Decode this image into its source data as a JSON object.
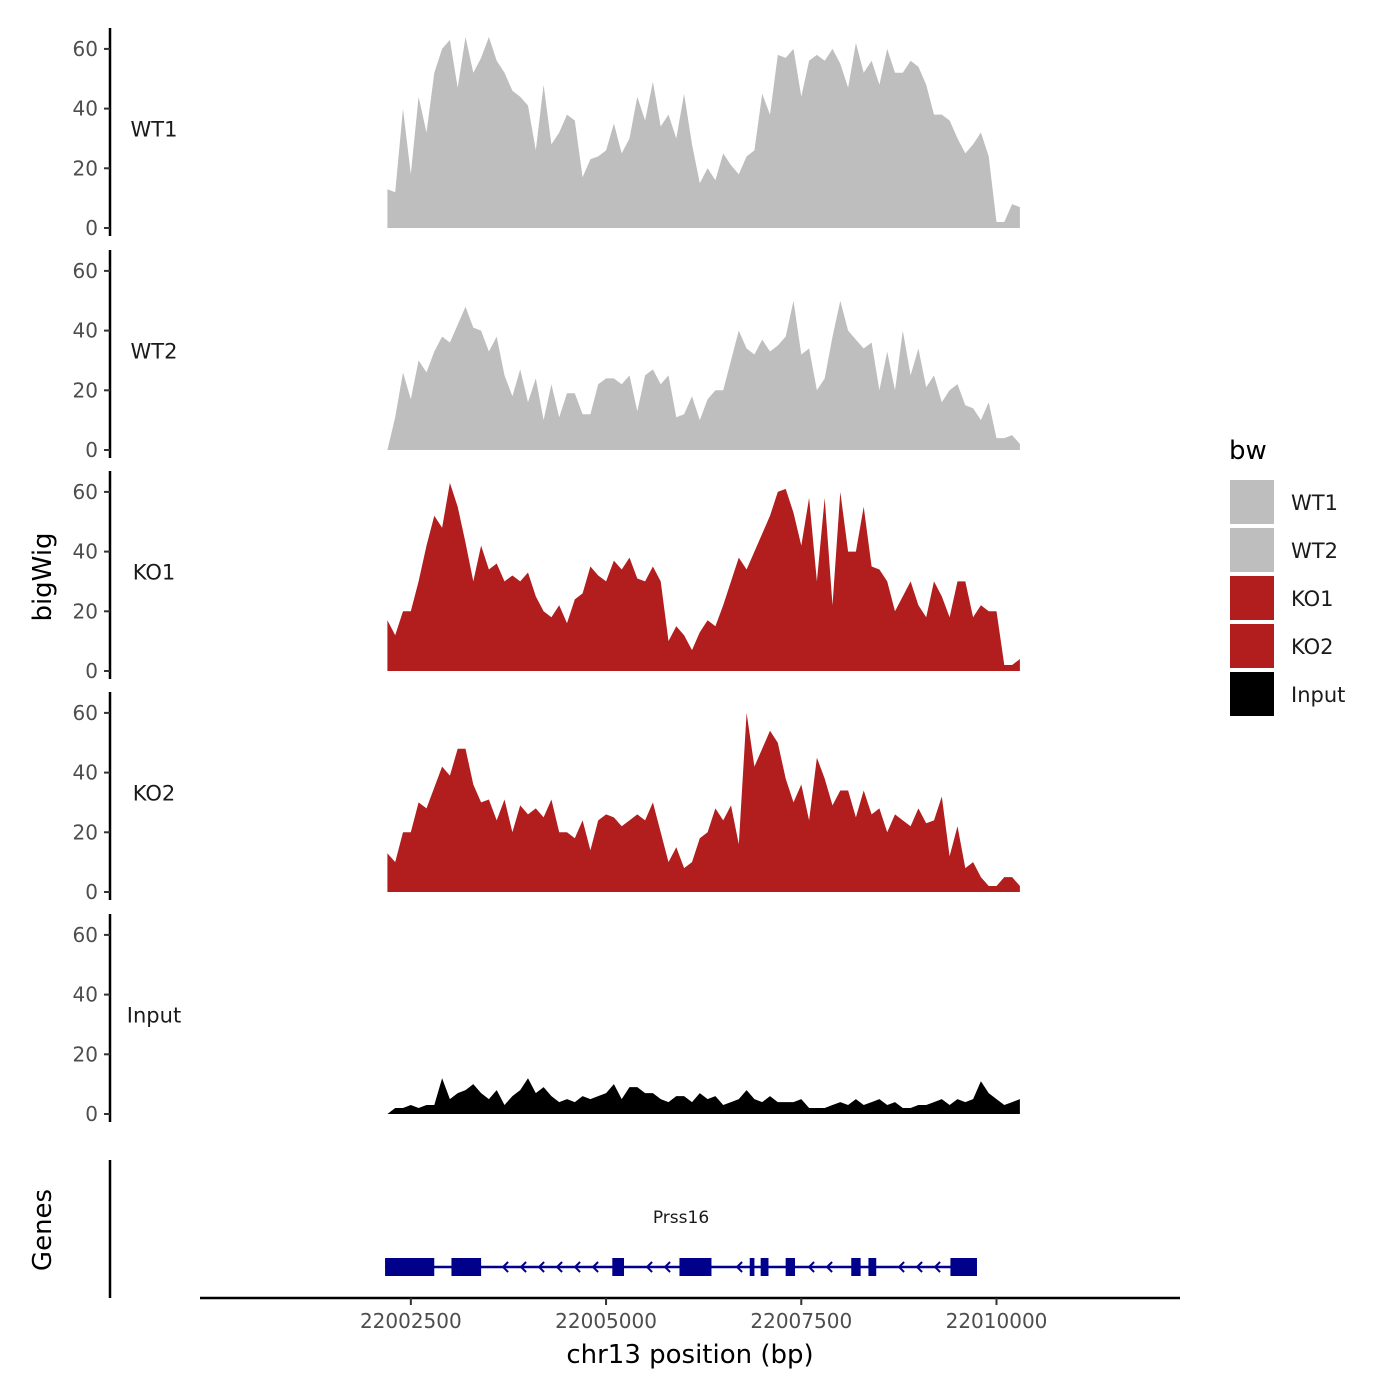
{
  "chart_data": {
    "type": "area",
    "chromosome": "chr13",
    "xlabel": "chr13 position (bp)",
    "ylabel": "bigWig",
    "xlim": [
      21999800,
      22012350
    ],
    "x_ticks": [
      22002500,
      22005000,
      22007500,
      22010000
    ],
    "x_tick_labels": [
      "22002500",
      "22005000",
      "22007500",
      "22010000"
    ],
    "ylim": [
      0,
      67
    ],
    "y_ticks": [
      0,
      20,
      40,
      60
    ],
    "y_tick_labels": [
      "0",
      "20",
      "40",
      "60"
    ],
    "x_start": 22002200,
    "x_step": 100,
    "series": [
      {
        "name": "WT1",
        "color": "#bebebe",
        "values": [
          13,
          12,
          40,
          18,
          44,
          32,
          52,
          60,
          63,
          47,
          64,
          52,
          57,
          64,
          56,
          52,
          46,
          44,
          41,
          26,
          48,
          28,
          32,
          38,
          36,
          17,
          23,
          24,
          26,
          35,
          25,
          30,
          44,
          36,
          49,
          34,
          38,
          30,
          45,
          28,
          15,
          20,
          16,
          25,
          21,
          18,
          24,
          26,
          45,
          38,
          58,
          57,
          60,
          44,
          56,
          58,
          56,
          60,
          55,
          47,
          62,
          52,
          56,
          48,
          60,
          52,
          52,
          56,
          54,
          48,
          38,
          38,
          36,
          30,
          25,
          28,
          32,
          24,
          2,
          2,
          8,
          7
        ]
      },
      {
        "name": "WT2",
        "color": "#bebebe",
        "values": [
          0,
          11,
          26,
          17,
          30,
          26,
          33,
          38,
          36,
          42,
          48,
          41,
          40,
          33,
          38,
          25,
          18,
          27,
          16,
          24,
          10,
          22,
          11,
          19,
          19,
          12,
          12,
          22,
          24,
          24,
          22,
          25,
          13,
          25,
          27,
          22,
          25,
          11,
          12,
          18,
          10,
          17,
          20,
          20,
          30,
          40,
          34,
          32,
          37,
          33,
          35,
          38,
          50,
          32,
          34,
          20,
          24,
          38,
          50,
          40,
          37,
          34,
          36,
          20,
          33,
          20,
          40,
          25,
          34,
          21,
          25,
          16,
          20,
          22,
          15,
          14,
          10,
          16,
          4,
          4,
          5,
          2
        ]
      },
      {
        "name": "KO1",
        "color": "#b21d1e",
        "values": [
          17,
          12,
          20,
          20,
          30,
          42,
          52,
          48,
          63,
          55,
          43,
          30,
          42,
          34,
          36,
          30,
          32,
          30,
          33,
          25,
          20,
          18,
          22,
          16,
          24,
          26,
          35,
          32,
          30,
          37,
          34,
          38,
          31,
          30,
          35,
          30,
          10,
          15,
          12,
          7,
          13,
          17,
          15,
          22,
          30,
          38,
          34,
          40,
          46,
          52,
          60,
          61,
          53,
          42,
          58,
          30,
          58,
          22,
          60,
          40,
          40,
          55,
          35,
          34,
          30,
          20,
          25,
          30,
          22,
          18,
          30,
          25,
          18,
          30,
          30,
          18,
          22,
          20,
          20,
          2,
          2,
          4
        ]
      },
      {
        "name": "KO2",
        "color": "#b21d1e",
        "values": [
          13,
          10,
          20,
          20,
          30,
          28,
          35,
          42,
          39,
          48,
          48,
          36,
          30,
          31,
          24,
          31,
          20,
          29,
          26,
          28,
          25,
          31,
          20,
          20,
          18,
          24,
          14,
          24,
          26,
          25,
          22,
          24,
          26,
          24,
          30,
          20,
          10,
          15,
          8,
          10,
          18,
          20,
          28,
          24,
          29,
          16,
          60,
          42,
          48,
          54,
          50,
          38,
          30,
          36,
          24,
          45,
          38,
          29,
          34,
          34,
          25,
          34,
          26,
          28,
          20,
          26,
          24,
          22,
          28,
          23,
          24,
          32,
          12,
          22,
          8,
          10,
          5,
          2,
          2,
          5,
          5,
          2
        ]
      },
      {
        "name": "Input",
        "color": "#000000",
        "values": [
          0,
          2,
          2,
          3,
          2,
          3,
          3,
          12,
          5,
          7,
          8,
          10,
          7,
          5,
          8,
          3,
          6,
          8,
          12,
          7,
          9,
          6,
          4,
          5,
          4,
          6,
          5,
          6,
          7,
          10,
          5,
          9,
          9,
          7,
          7,
          5,
          4,
          6,
          6,
          4,
          7,
          5,
          6,
          3,
          4,
          5,
          8,
          5,
          4,
          6,
          4,
          4,
          4,
          5,
          2,
          2,
          2,
          3,
          4,
          3,
          5,
          3,
          4,
          5,
          3,
          4,
          2,
          2,
          3,
          3,
          4,
          5,
          3,
          5,
          4,
          5,
          11,
          7,
          5,
          3,
          4,
          5
        ]
      }
    ],
    "genes": [
      {
        "name": "Prss16",
        "start": 22002170,
        "end": 22009750,
        "strand": "-",
        "color": "#00008b",
        "exons": [
          [
            22002170,
            22002800
          ],
          [
            22003020,
            22003400
          ],
          [
            22005080,
            22005230
          ],
          [
            22005940,
            22006350
          ],
          [
            22006840,
            22006900
          ],
          [
            22006980,
            22007080
          ],
          [
            22007300,
            22007420
          ],
          [
            22008140,
            22008260
          ],
          [
            22008360,
            22008460
          ],
          [
            22009410,
            22009750
          ]
        ]
      }
    ],
    "tracks_panel_title": "Genes",
    "legend": {
      "title": "bw",
      "position": "right",
      "entries": [
        {
          "label": "WT1",
          "color": "#bebebe"
        },
        {
          "label": "WT2",
          "color": "#bebebe"
        },
        {
          "label": "KO1",
          "color": "#b21d1e"
        },
        {
          "label": "KO2",
          "color": "#b21d1e"
        },
        {
          "label": "Input",
          "color": "#000000"
        }
      ]
    }
  }
}
